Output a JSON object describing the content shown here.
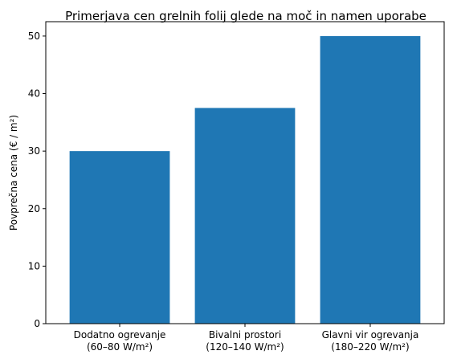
{
  "chart_data": {
    "type": "bar",
    "title": "Primerjava cen grelnih folij glede na moč in namen uporabe",
    "xlabel": "",
    "ylabel": "Povprečna cena (€ / m²)",
    "categories": [
      [
        "Dodatno ogrevanje",
        "(60–80 W/m²)"
      ],
      [
        "Bivalni prostori",
        "(120–140 W/m²)"
      ],
      [
        "Glavni vir ogrevanja",
        "(180–220 W/m²)"
      ]
    ],
    "values": [
      30,
      37.5,
      50
    ],
    "ylim": [
      0,
      52.5
    ],
    "yticks": [
      "0",
      "10",
      "20",
      "30",
      "40",
      "50"
    ],
    "bar_color": "#1f77b4",
    "grid": false
  }
}
